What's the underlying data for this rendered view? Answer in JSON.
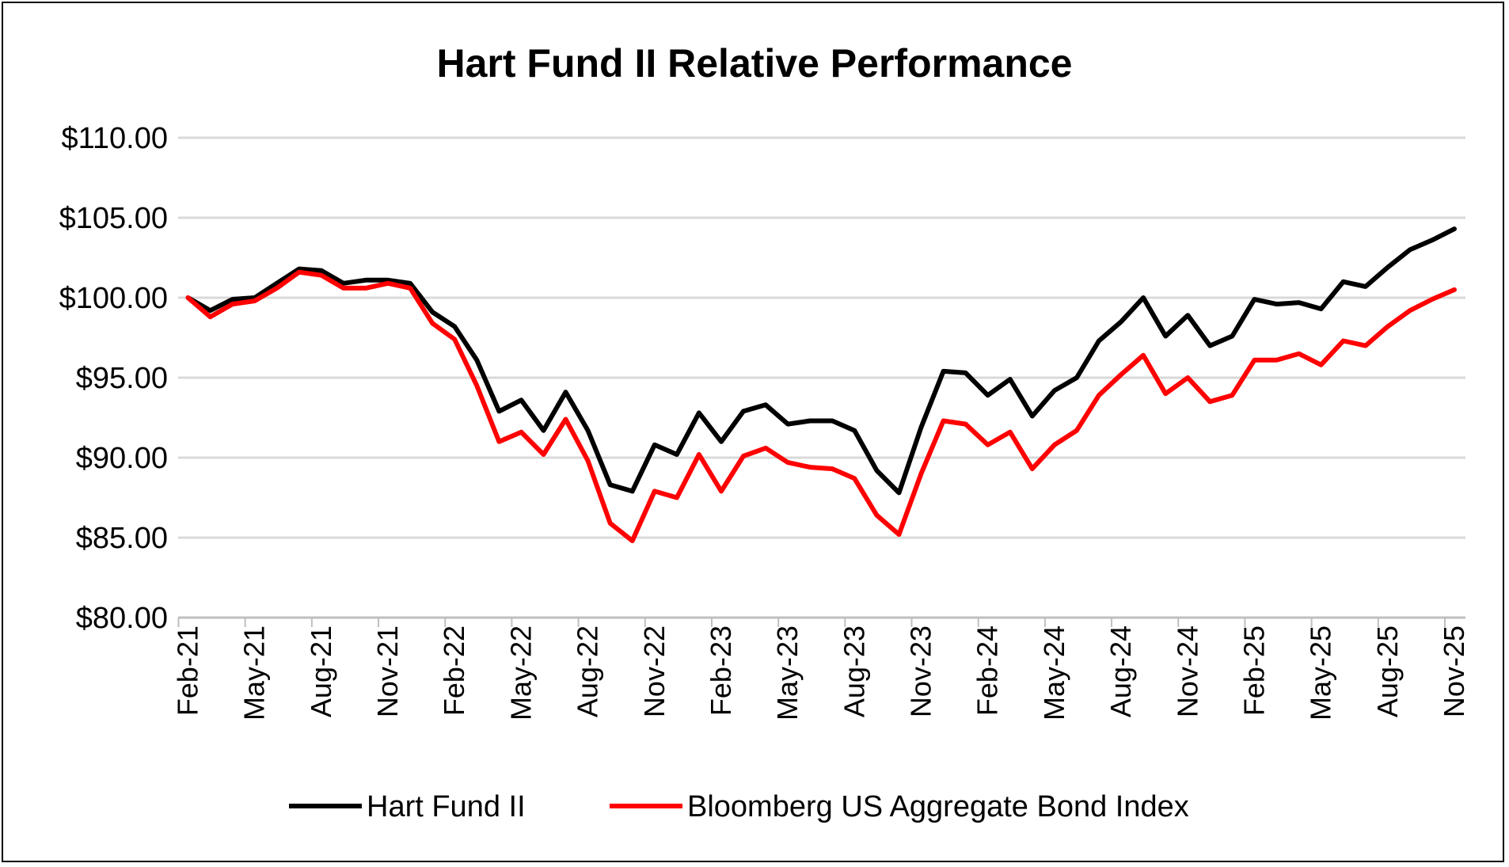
{
  "chart_data": {
    "type": "line",
    "title": "Hart Fund II Relative Performance",
    "xlabel": "",
    "ylabel": "",
    "ylim": [
      80,
      110
    ],
    "y_ticks": [
      "$80.00",
      "$85.00",
      "$90.00",
      "$95.00",
      "$100.00",
      "$105.00",
      "$110.00"
    ],
    "y_tick_values": [
      80,
      85,
      90,
      95,
      100,
      105,
      110
    ],
    "grid": true,
    "legend_position": "bottom",
    "x": [
      "Feb-21",
      "Mar-21",
      "Apr-21",
      "May-21",
      "Jun-21",
      "Jul-21",
      "Aug-21",
      "Sep-21",
      "Oct-21",
      "Nov-21",
      "Dec-21",
      "Jan-22",
      "Feb-22",
      "Mar-22",
      "Apr-22",
      "May-22",
      "Jun-22",
      "Jul-22",
      "Aug-22",
      "Sep-22",
      "Oct-22",
      "Nov-22",
      "Dec-22",
      "Jan-23",
      "Feb-23",
      "Mar-23",
      "Apr-23",
      "May-23",
      "Jun-23",
      "Jul-23",
      "Aug-23",
      "Sep-23",
      "Oct-23",
      "Nov-23",
      "Dec-23",
      "Jan-24",
      "Feb-24",
      "Mar-24",
      "Apr-24",
      "May-24",
      "Jun-24",
      "Jul-24",
      "Aug-24",
      "Sep-24",
      "Oct-24",
      "Nov-24",
      "Dec-24",
      "Jan-25",
      "Feb-25",
      "Mar-25",
      "Apr-25",
      "May-25",
      "Jun-25",
      "Jul-25",
      "Aug-25",
      "Sep-25",
      "Oct-25",
      "Nov-25"
    ],
    "x_tick_labels": [
      "Feb-21",
      "May-21",
      "Aug-21",
      "Nov-21",
      "Feb-22",
      "May-22",
      "Aug-22",
      "Nov-22",
      "Feb-23",
      "May-23",
      "Aug-23",
      "Nov-23",
      "Feb-24",
      "May-24",
      "Aug-24",
      "Nov-24",
      "Feb-25",
      "May-25",
      "Aug-25",
      "Nov-25"
    ],
    "series": [
      {
        "name": "Hart Fund II",
        "color": "#000000",
        "values": [
          100.0,
          99.2,
          99.9,
          100.0,
          100.9,
          101.8,
          101.7,
          100.9,
          101.1,
          101.1,
          100.9,
          99.1,
          98.2,
          96.1,
          92.9,
          93.6,
          91.7,
          94.1,
          91.7,
          88.3,
          87.9,
          90.8,
          90.2,
          92.8,
          91.0,
          92.9,
          93.3,
          92.1,
          92.3,
          92.3,
          91.7,
          89.2,
          87.8,
          91.9,
          95.4,
          95.3,
          93.9,
          94.9,
          92.6,
          94.2,
          95.0,
          97.3,
          98.5,
          100.0,
          97.6,
          98.9,
          97.0,
          97.6,
          99.9,
          99.6,
          99.7,
          99.3,
          101.0,
          100.7,
          101.9,
          103.0,
          103.6,
          104.3
        ]
      },
      {
        "name": "Bloomberg US Aggregate Bond Index",
        "color": "#ff0000",
        "values": [
          100.0,
          98.8,
          99.6,
          99.8,
          100.6,
          101.6,
          101.4,
          100.6,
          100.6,
          100.9,
          100.6,
          98.4,
          97.4,
          94.5,
          91.0,
          91.6,
          90.2,
          92.4,
          89.8,
          85.9,
          84.8,
          87.9,
          87.5,
          90.2,
          87.9,
          90.1,
          90.6,
          89.7,
          89.4,
          89.3,
          88.7,
          86.4,
          85.2,
          89.0,
          92.3,
          92.1,
          90.8,
          91.6,
          89.3,
          90.8,
          91.7,
          93.9,
          95.2,
          96.4,
          94.0,
          95.0,
          93.5,
          93.9,
          96.1,
          96.1,
          96.5,
          95.8,
          97.3,
          97.0,
          98.2,
          99.2,
          99.9,
          100.5
        ]
      }
    ]
  }
}
